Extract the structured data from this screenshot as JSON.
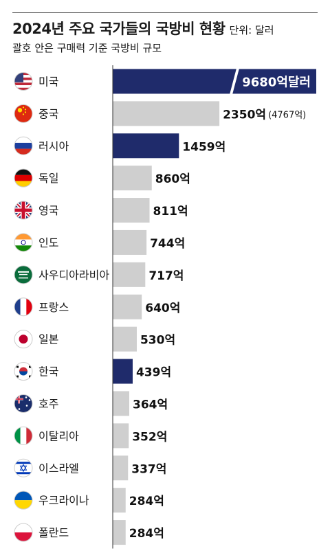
{
  "header": {
    "title": "2024년 주요 국가들의 국방비 현황",
    "unit": "단위: 달러",
    "subtitle": "괄호 안은 구매력 기준 국방비 규모"
  },
  "colors": {
    "highlight": "#1f2b6b",
    "default": "#cfcfcf",
    "axis": "#333333"
  },
  "chart_data": {
    "type": "bar",
    "orientation": "horizontal",
    "title": "2024년 주요 국가들의 국방비 현황",
    "unit": "억달러",
    "categories": [
      "미국",
      "중국",
      "러시아",
      "독일",
      "영국",
      "인도",
      "사우디아라비아",
      "프랑스",
      "일본",
      "한국",
      "호주",
      "이탈리아",
      "이스라엘",
      "우크라이나",
      "폴란드"
    ],
    "values": [
      9680,
      2350,
      1459,
      860,
      811,
      744,
      717,
      640,
      530,
      439,
      364,
      352,
      337,
      284,
      284
    ],
    "value_labels": [
      "9680억달러",
      "2350억",
      "1459억",
      "860억",
      "811억",
      "744억",
      "717억",
      "640억",
      "530억",
      "439억",
      "364억",
      "352억",
      "337억",
      "284억",
      "284억"
    ],
    "extra_labels": [
      "",
      "(4767억)",
      "",
      "",
      "",
      "",
      "",
      "",
      "",
      "",
      "",
      "",
      "",
      "",
      ""
    ],
    "highlighted": [
      "미국",
      "러시아",
      "한국"
    ],
    "axis_break": "미국",
    "flags": [
      "us-flag-icon",
      "china-flag-icon",
      "russia-flag-icon",
      "germany-flag-icon",
      "uk-flag-icon",
      "india-flag-icon",
      "saudi-flag-icon",
      "france-flag-icon",
      "japan-flag-icon",
      "korea-flag-icon",
      "australia-flag-icon",
      "italy-flag-icon",
      "israel-flag-icon",
      "ukraine-flag-icon",
      "poland-flag-icon"
    ]
  }
}
